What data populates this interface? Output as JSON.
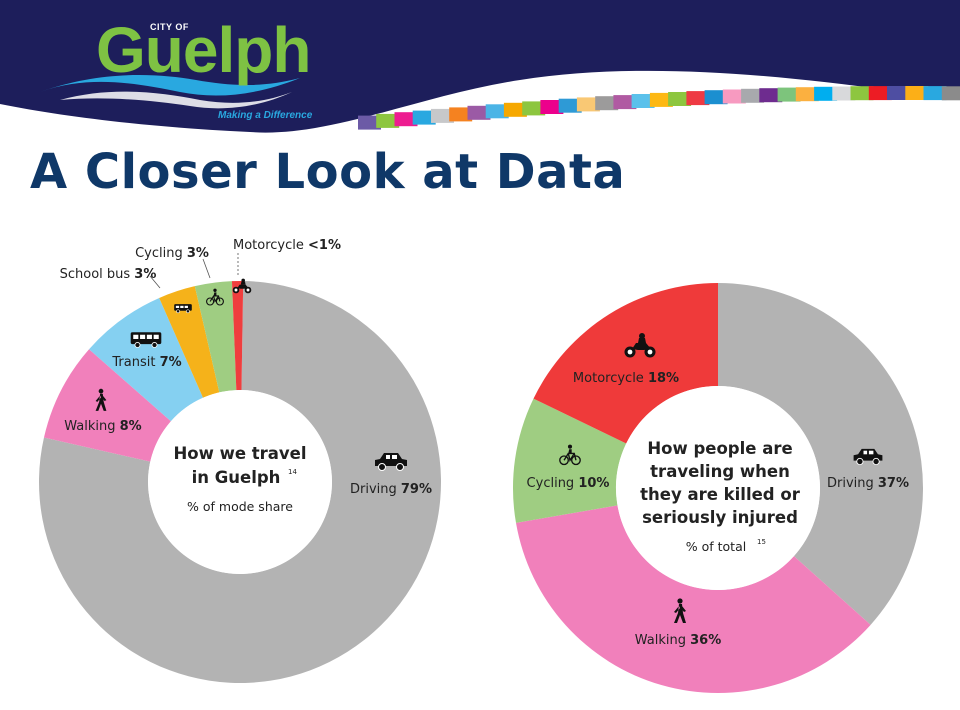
{
  "header": {
    "logo_city": "CITY OF",
    "logo_name": "Guelph",
    "logo_tagline": "Making a Difference",
    "title": "A Closer Look at Data",
    "banner_color": "#1d1e5b",
    "stripe_colors": [
      "#6c5aa6",
      "#8dc63f",
      "#ed1c90",
      "#29a8e0",
      "#c7c8ca",
      "#f58220",
      "#9b5aa5",
      "#4bb4e6",
      "#f6a800",
      "#8dc63f",
      "#ec008c",
      "#2e9ad6",
      "#f9c874",
      "#9c9b9b",
      "#b05aa2",
      "#5bc1eb",
      "#fdb813",
      "#8dc63f",
      "#ee3a43",
      "#1b8fd0",
      "#f79ac0",
      "#a8a9ad",
      "#6e2c8f",
      "#7dc47c",
      "#fbb040",
      "#00aeef",
      "#d8d9db",
      "#8dc63f",
      "#ed1c24",
      "#4e4ea2",
      "#fcaf17",
      "#29a8e0",
      "#8b8b8b"
    ]
  },
  "chart_data": [
    {
      "type": "pie",
      "donut": true,
      "center": {
        "line1": "How we travel",
        "line2": "in Guelph",
        "sup": "14",
        "subtitle": "% of mode share"
      },
      "slices": [
        {
          "name": "Driving",
          "value": 79,
          "label": "79%",
          "color": "#b3b3b3",
          "icon": "car-icon"
        },
        {
          "name": "Walking",
          "value": 8,
          "label": "8%",
          "color": "#f180bb",
          "icon": "pedestrian-icon"
        },
        {
          "name": "Transit",
          "value": 7,
          "label": "7%",
          "color": "#85d0f1",
          "icon": "bus-icon"
        },
        {
          "name": "School bus",
          "value": 3,
          "label": "3%",
          "color": "#f5b21a",
          "icon": "school-bus-icon"
        },
        {
          "name": "Cycling",
          "value": 3,
          "label": "3%",
          "color": "#9fcd82",
          "icon": "bicycle-icon"
        },
        {
          "name": "Motorcycle",
          "value": 0.9,
          "label": "<1%",
          "color": "#ef3e3e",
          "icon": "motorcycle-icon"
        }
      ]
    },
    {
      "type": "pie",
      "donut": true,
      "center": {
        "line1": "How people are",
        "line2": "traveling when",
        "line3": "they are killed or",
        "line4": "seriously injured",
        "subtitle": "% of total",
        "sup": "15"
      },
      "slices": [
        {
          "name": "Driving",
          "value": 37,
          "label": "37%",
          "color": "#b3b3b3",
          "icon": "car-icon"
        },
        {
          "name": "Walking",
          "value": 36,
          "label": "36%",
          "color": "#f180bb",
          "icon": "pedestrian-icon"
        },
        {
          "name": "Cycling",
          "value": 10,
          "label": "10%",
          "color": "#9fcd82",
          "icon": "bicycle-icon"
        },
        {
          "name": "Motorcycle",
          "value": 18,
          "label": "18%",
          "color": "#ef3a3a",
          "icon": "motorcycle-icon"
        }
      ]
    }
  ]
}
